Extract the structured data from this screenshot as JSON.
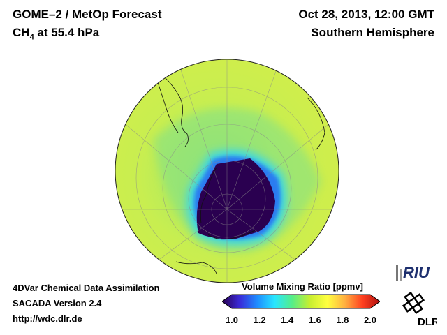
{
  "title": {
    "product": "GOME–2 / MetOp Forecast",
    "species": "CH",
    "species_sub": "4",
    "level": " at 55.4 hPa",
    "datetime": "Oct 28, 2013, 12:00 GMT",
    "region": "Southern Hemisphere"
  },
  "credits": {
    "line1": "4DVar Chemical Data Assimilation",
    "line2": "SACADA Version 2.4",
    "line3": "http://wdc.dlr.de"
  },
  "colorbar": {
    "title": "Volume Mixing Ratio [ppmv]",
    "ticks": [
      "1.0",
      "1.2",
      "1.4",
      "1.6",
      "1.8",
      "2.0"
    ],
    "min": 1.0,
    "max": 2.0,
    "stops": [
      "#2a0050",
      "#3a2ad8",
      "#1e8cff",
      "#28e6ff",
      "#55ee88",
      "#c8ee30",
      "#ffff40",
      "#ffb040",
      "#ff4020",
      "#b01010"
    ]
  },
  "map": {
    "projection": "orthographic-south-polar",
    "background_color": "#c8ee50",
    "polar_vortex_color": "#2a0050",
    "grid": true
  },
  "logos": {
    "riu": "RIU",
    "dlr": "DLR"
  }
}
